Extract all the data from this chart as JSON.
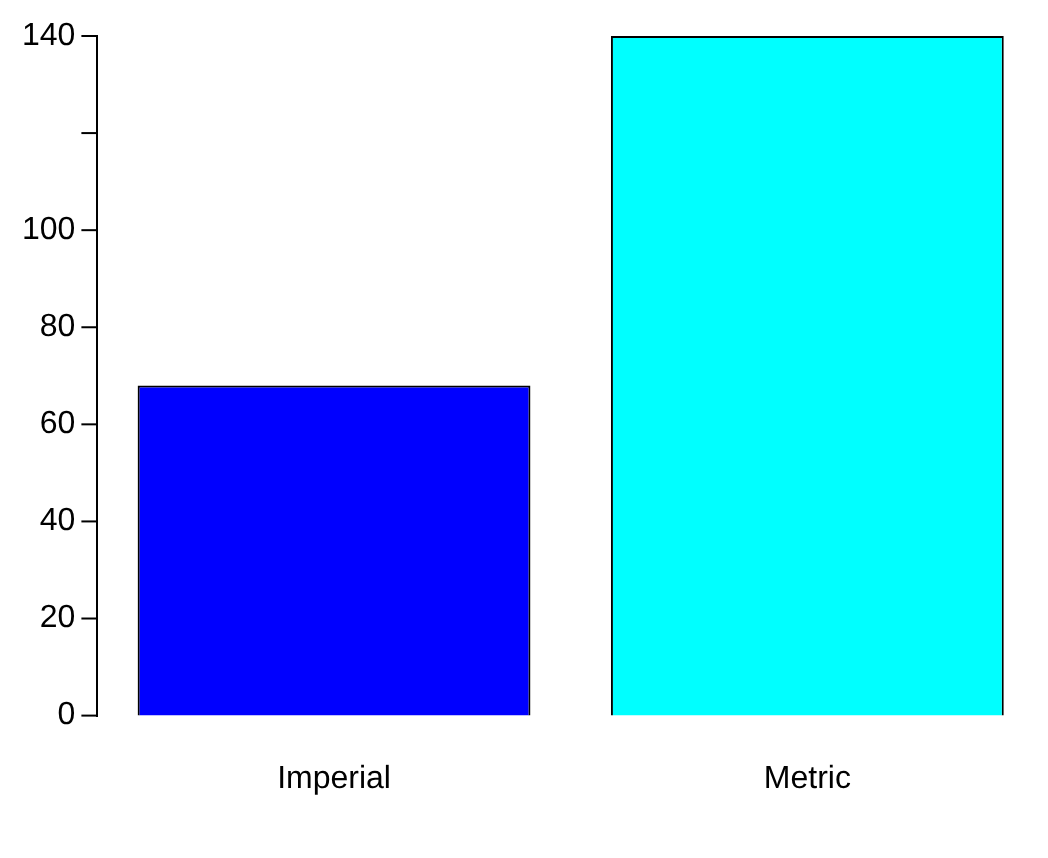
{
  "chart_data": {
    "type": "bar",
    "categories": [
      "Imperial",
      "Metric"
    ],
    "colors": [
      "#0000ff",
      "#00ffff"
    ],
    "values": [
      68,
      140
    ],
    "ylim": [
      0,
      140
    ],
    "yticks": [
      0,
      20,
      40,
      60,
      80,
      100,
      {
        "value": 120,
        "label": null
      },
      140
    ],
    "grid": false,
    "legend": false
  }
}
